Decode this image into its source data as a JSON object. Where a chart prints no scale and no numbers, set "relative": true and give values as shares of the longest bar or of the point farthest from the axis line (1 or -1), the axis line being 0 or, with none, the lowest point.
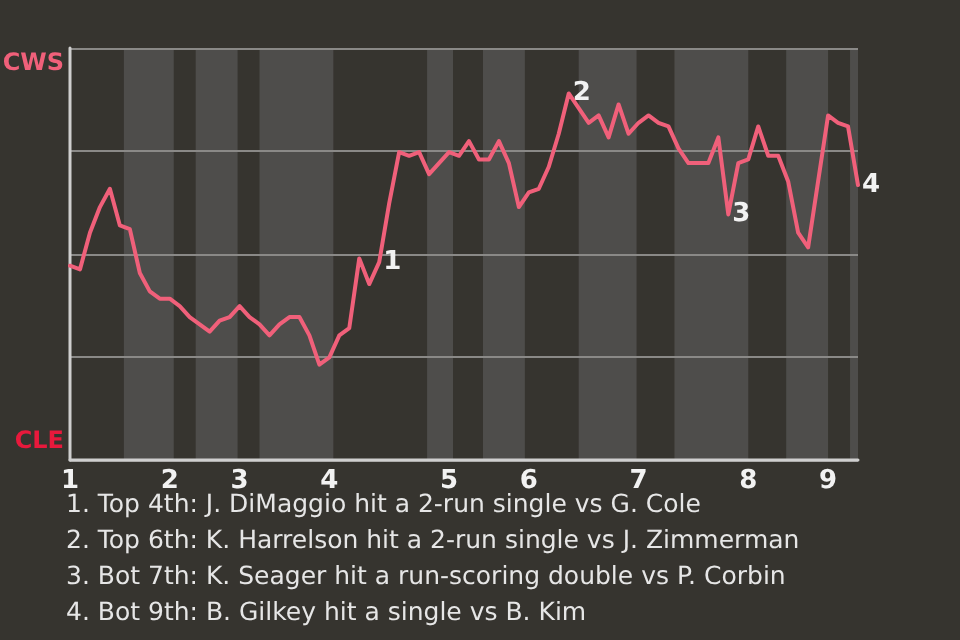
{
  "chart_data": {
    "type": "line",
    "categories": [
      "1",
      null,
      null,
      null,
      null,
      null,
      null,
      null,
      null,
      null,
      "2",
      null,
      null,
      null,
      null,
      null,
      null,
      "3",
      null,
      null,
      null,
      null,
      null,
      null,
      null,
      null,
      "4",
      null,
      null,
      null,
      null,
      null,
      null,
      null,
      null,
      null,
      null,
      null,
      "5",
      null,
      null,
      null,
      null,
      null,
      null,
      null,
      "6",
      null,
      null,
      null,
      null,
      null,
      null,
      null,
      null,
      null,
      null,
      "7",
      null,
      null,
      null,
      null,
      null,
      null,
      null,
      null,
      null,
      null,
      "8",
      null,
      null,
      null,
      null,
      null,
      null,
      null,
      "9",
      null,
      null,
      null
    ],
    "series": [
      {
        "color": "#f0607a",
        "values": [
          0.53,
          0.52,
          0.62,
          0.69,
          0.74,
          0.64,
          0.63,
          0.51,
          0.46,
          0.44,
          0.44,
          0.42,
          0.39,
          0.37,
          0.35,
          0.38,
          0.39,
          0.42,
          0.39,
          0.37,
          0.34,
          0.37,
          0.39,
          0.39,
          0.34,
          0.26,
          0.28,
          0.34,
          0.36,
          0.55,
          0.48,
          0.54,
          0.7,
          0.84,
          0.83,
          0.84,
          0.78,
          0.81,
          0.84,
          0.83,
          0.87,
          0.82,
          0.82,
          0.87,
          0.81,
          0.69,
          0.73,
          0.74,
          0.8,
          0.89,
          1,
          0.96,
          0.92,
          0.94,
          0.88,
          0.97,
          0.89,
          0.92,
          0.94,
          0.92,
          0.91,
          0.85,
          0.81,
          0.81,
          0.81,
          0.88,
          0.67,
          0.81,
          0.82,
          0.91,
          0.83,
          0.83,
          0.76,
          0.62,
          0.58,
          0.76,
          0.94,
          0.92,
          0.91,
          0.75
        ]
      }
    ],
    "relative": true,
    "grid": "y",
    "marker": "none",
    "annotations": [
      "CWS",
      "CLE",
      "1",
      "2",
      "3",
      "4",
      "1. Top 4th: J. DiMaggio hit a 2-run single vs G. Cole",
      "2. Top 6th: K. Harrelson hit a 2-run single vs J. Zimmerman",
      "3. Bot 7th: K. Seager hit a run-scoring double vs P. Corbin",
      "4. Bot 9th: B. Gilkey hit a single vs B. Kim"
    ]
  }
}
